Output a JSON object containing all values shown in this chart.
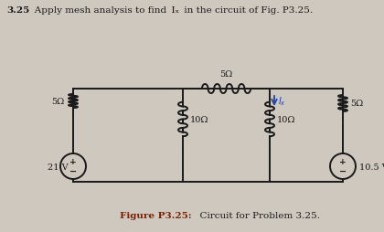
{
  "title_num": "3.25",
  "title_text": "   Apply mesh analysis to find  Iₓ  in the circuit of Fig. P3.25.",
  "figure_caption_bold": "Figure P3.25:",
  "figure_caption_normal": "  Circuit for Problem 3.25.",
  "background_color": "#cec8bf",
  "text_color": "#1a1a1a",
  "caption_color": "#7B2000",
  "circuit_color": "#1a1a1a",
  "ix_color": "#2244aa",
  "resistor_5_left_label": "5Ω",
  "resistor_5_top_label": "5Ω",
  "resistor_10_mid_label": "10Ω",
  "resistor_10_right_label": "10Ω",
  "resistor_5_right_label": "5Ω",
  "voltage_left": "21 V",
  "voltage_right": "10.5 V",
  "figsize": [
    4.2,
    2.55
  ],
  "dpi": 100
}
